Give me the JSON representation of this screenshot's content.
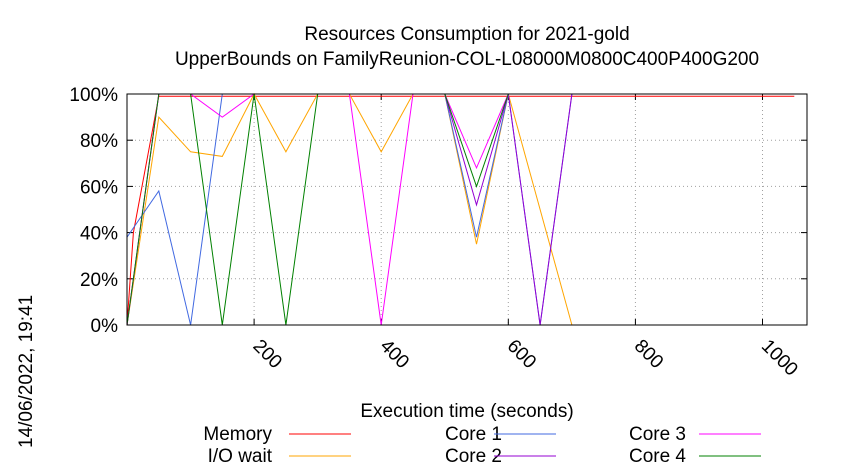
{
  "chart_data": {
    "type": "line",
    "title": "Resources Consumption for 2021-gold",
    "subtitle": "UpperBounds on FamilyReunion-COL-L08000M0800C400P400G200",
    "xlabel": "Execution time (seconds)",
    "ylabel": "",
    "timestamp": "14/06/2022, 19:41",
    "xlim": [
      0,
      1070
    ],
    "ylim": [
      0,
      100
    ],
    "xticks": [
      200,
      400,
      600,
      800,
      1000
    ],
    "xtick_labels": [
      "200",
      "400",
      "600",
      "800",
      "1000"
    ],
    "yticks": [
      0,
      20,
      40,
      60,
      80,
      100
    ],
    "ytick_labels": [
      "0%",
      "20%",
      "40%",
      "60%",
      "80%",
      "100%"
    ],
    "grid": true,
    "legend_position": "bottom",
    "series": [
      {
        "name": "Memory",
        "color": "#ff0000",
        "x": [
          0,
          10,
          50,
          100,
          150,
          200,
          250,
          300,
          350,
          400,
          450,
          500,
          550,
          600,
          700,
          800,
          900,
          1000,
          1050
        ],
        "y": [
          0,
          40,
          99,
          99,
          99,
          99,
          99,
          99,
          99,
          99,
          99,
          99,
          99,
          99,
          99,
          99,
          99,
          99,
          99
        ]
      },
      {
        "name": "I/O wait",
        "color": "#ffa500",
        "x": [
          0,
          50,
          100,
          150,
          200,
          250,
          300,
          350,
          400,
          450,
          500,
          550,
          600,
          700
        ],
        "y": [
          0,
          90,
          75,
          73,
          100,
          75,
          100,
          100,
          75,
          100,
          100,
          35,
          100,
          0
        ]
      },
      {
        "name": "Core 1",
        "color": "#4169e1",
        "x": [
          0,
          50,
          100,
          150,
          200,
          250,
          300,
          350,
          400,
          450,
          500,
          550,
          600,
          650,
          700
        ],
        "y": [
          38,
          58,
          0,
          100,
          100,
          100,
          100,
          100,
          100,
          100,
          100,
          38,
          100,
          0,
          100
        ]
      },
      {
        "name": "Core 2",
        "color": "#9400d3",
        "x": [
          0,
          50,
          100,
          150,
          200,
          250,
          300,
          350,
          400,
          450,
          500,
          550,
          600,
          650,
          700
        ],
        "y": [
          0,
          100,
          100,
          100,
          100,
          100,
          100,
          100,
          100,
          100,
          100,
          52,
          100,
          0,
          100
        ]
      },
      {
        "name": "Core 3",
        "color": "#ff00ff",
        "x": [
          0,
          50,
          100,
          150,
          200,
          250,
          300,
          350,
          400,
          450,
          500,
          550,
          600
        ],
        "y": [
          0,
          100,
          100,
          90,
          100,
          100,
          100,
          100,
          0,
          100,
          100,
          68,
          100
        ]
      },
      {
        "name": "Core 4",
        "color": "#008000",
        "x": [
          0,
          50,
          100,
          150,
          200,
          250,
          300,
          350,
          400,
          450,
          500,
          550,
          600
        ],
        "y": [
          0,
          100,
          100,
          0,
          100,
          0,
          100,
          100,
          100,
          100,
          100,
          60,
          100
        ]
      }
    ]
  }
}
